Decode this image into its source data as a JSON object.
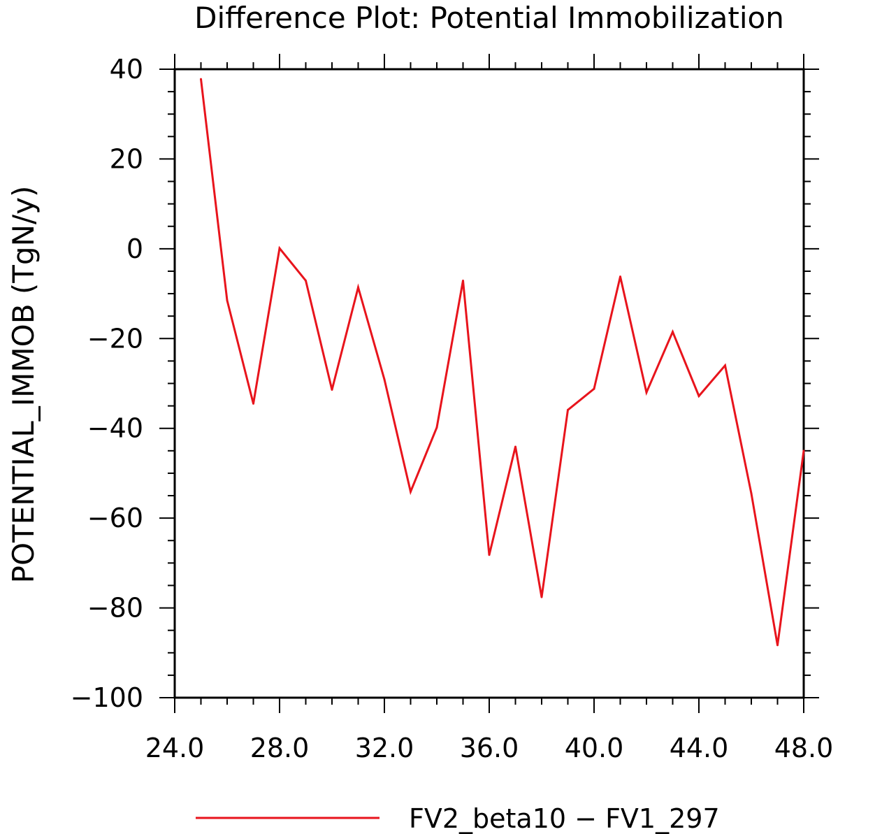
{
  "chart_data": {
    "type": "line",
    "title": "Difference Plot: Potential Immobilization",
    "xlabel": "",
    "ylabel": "POTENTIAL_IMMOB   (TgN/y)",
    "xlim": [
      24.0,
      48.0
    ],
    "ylim": [
      -100,
      40
    ],
    "x_ticks": [
      "24.0",
      "28.0",
      "32.0",
      "36.0",
      "40.0",
      "44.0",
      "48.0"
    ],
    "y_ticks": [
      "40",
      "20",
      "0",
      "−20",
      "−40",
      "−60",
      "−80",
      "−100"
    ],
    "grid": false,
    "legend_position": "bottom-center",
    "series": [
      {
        "name": "FV2_beta10 − FV1_297",
        "color": "#e8141c",
        "x": [
          25,
          26,
          27,
          28,
          29,
          30,
          31,
          32,
          33,
          34,
          35,
          36,
          37,
          38,
          39,
          40,
          41,
          42,
          43,
          44,
          45,
          46,
          47,
          48
        ],
        "values": [
          37.8,
          -11.5,
          -34.5,
          0.1,
          -7.1,
          -31.4,
          -8.6,
          -29.1,
          -54.1,
          -39.8,
          -7.1,
          -68.2,
          -44.1,
          -77.6,
          -35.9,
          -31.2,
          -6.2,
          -32.0,
          -18.5,
          -32.8,
          -26.0,
          -54.5,
          -88.3,
          -45.0
        ]
      }
    ]
  }
}
